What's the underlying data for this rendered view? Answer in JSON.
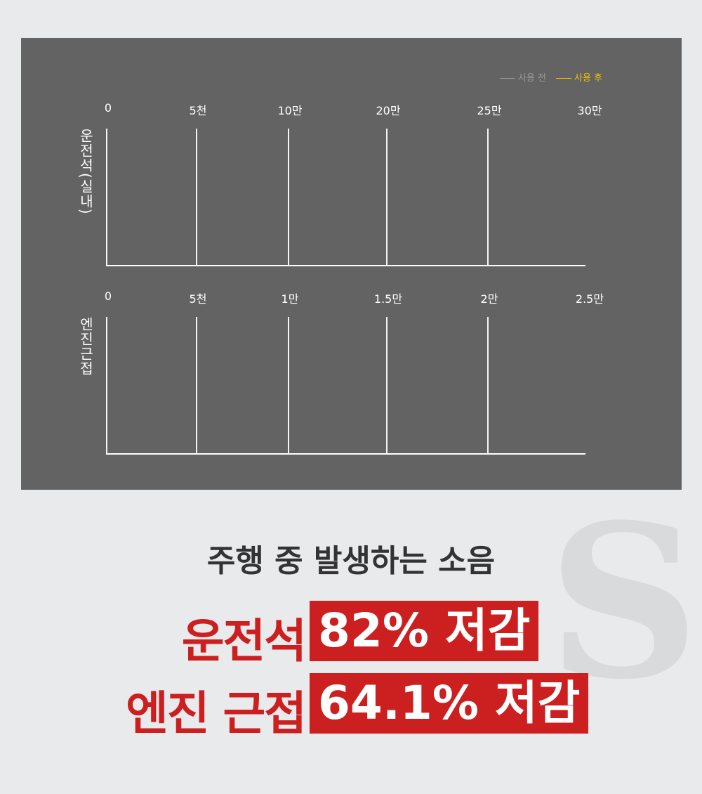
{
  "legend": [
    {
      "label": "사용 전",
      "color": "#9a9a9a"
    },
    {
      "label": "사용 후",
      "color": "#f2c200"
    }
  ],
  "chart_data": [
    {
      "type": "bar",
      "orientation": "horizontal",
      "ylabel": "운전석(실내)",
      "ticks": [
        "0",
        "5천",
        "10만",
        "20만",
        "25만",
        "30만"
      ],
      "series": [
        {
          "name": "사용 전",
          "values": []
        },
        {
          "name": "사용 후",
          "values": []
        }
      ]
    },
    {
      "type": "bar",
      "orientation": "horizontal",
      "ylabel": "엔진근접",
      "ticks": [
        "0",
        "5천",
        "1만",
        "1.5만",
        "2만",
        "2.5만"
      ],
      "series": [
        {
          "name": "사용 전",
          "values": []
        },
        {
          "name": "사용 후",
          "values": []
        }
      ]
    }
  ],
  "headline": {
    "title": "주행 중 발생하는 소음",
    "line1_label": "운전석",
    "line1_value": "82% 저감",
    "line2_label": "엔진 근접",
    "line2_value": "64.1% 저감"
  },
  "colors": {
    "accent": "#cc1f1f",
    "panel": "#636363"
  },
  "logo": "S"
}
